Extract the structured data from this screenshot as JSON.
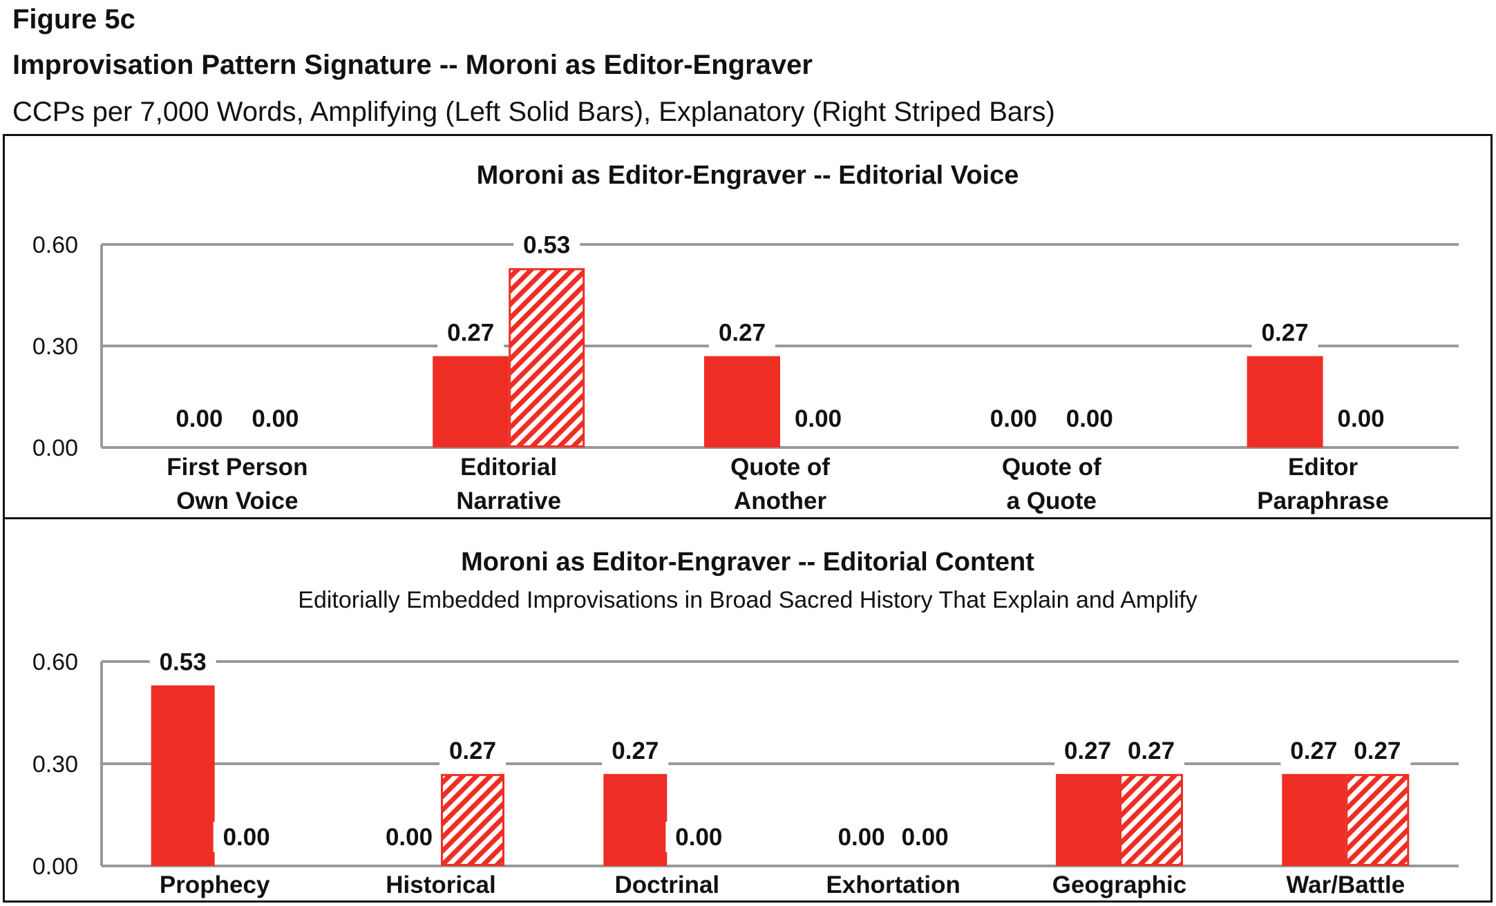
{
  "figure_label": "Figure 5c",
  "title": "Improvisation Pattern Signature -- Moroni as Editor-Engraver",
  "subtitle": "CCPs per 7,000 Words, Amplifying (Left Solid Bars), Explanatory (Right Striped Bars)",
  "colors": {
    "bar": "#ee2e24",
    "stripe": "#ffffff",
    "grid": "#999999"
  },
  "chart_data": [
    {
      "type": "bar",
      "title": "Moroni as Editor-Engraver -- Editorial Voice",
      "subtitle": "",
      "categories": [
        [
          "First Person",
          "Own Voice"
        ],
        [
          "Editorial",
          "Narrative"
        ],
        [
          "Quote of",
          "Another"
        ],
        [
          "Quote of",
          "a Quote"
        ],
        [
          "Editor",
          "Paraphrase"
        ]
      ],
      "series": [
        {
          "name": "Amplifying",
          "style": "solid",
          "values": [
            0.0,
            0.27,
            0.27,
            0.0,
            0.27
          ]
        },
        {
          "name": "Explanatory",
          "style": "striped",
          "values": [
            0.0,
            0.53,
            0.0,
            0.0,
            0.0
          ]
        }
      ],
      "ylim": [
        0,
        0.6
      ],
      "yticks": [
        "0.00",
        "0.30",
        "0.60"
      ],
      "grid": true,
      "data_labels": true
    },
    {
      "type": "bar",
      "title": "Moroni as Editor-Engraver -- Editorial Content",
      "subtitle": "Editorially Embedded Improvisations in Broad Sacred History That Explain and Amplify",
      "categories": [
        [
          "Prophecy"
        ],
        [
          "Historical"
        ],
        [
          "Doctrinal"
        ],
        [
          "Exhortation"
        ],
        [
          "Geographic"
        ],
        [
          "War/Battle"
        ]
      ],
      "series": [
        {
          "name": "Amplifying",
          "style": "solid",
          "values": [
            0.53,
            0.0,
            0.27,
            0.0,
            0.27,
            0.27
          ]
        },
        {
          "name": "Explanatory",
          "style": "striped",
          "values": [
            0.0,
            0.27,
            0.0,
            0.0,
            0.27,
            0.27
          ]
        }
      ],
      "ylim": [
        0,
        0.6
      ],
      "yticks": [
        "0.00",
        "0.30",
        "0.60"
      ],
      "grid": true,
      "data_labels": true
    }
  ]
}
